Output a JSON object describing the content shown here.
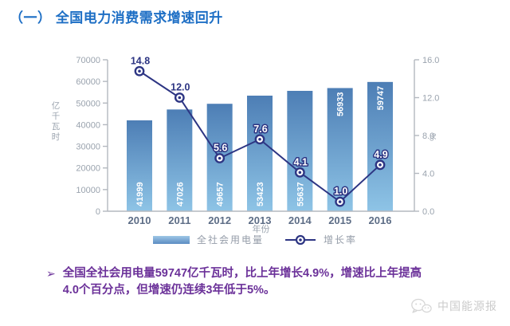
{
  "title": "（一） 全国电力消费需求增速回升",
  "chart_data": {
    "type": "bar+line",
    "categories": [
      "2010",
      "2011",
      "2012",
      "2013",
      "2014",
      "2015",
      "2016"
    ],
    "series": [
      {
        "name": "全社会用电量",
        "type": "bar",
        "axis": "left",
        "values": [
          41999,
          47026,
          49657,
          53423,
          55637,
          56933,
          59747
        ]
      },
      {
        "name": "增长率",
        "type": "line",
        "axis": "right",
        "values": [
          14.8,
          12.0,
          5.6,
          7.6,
          4.1,
          1.0,
          4.9
        ]
      }
    ],
    "xlabel": "年份",
    "left_axis": {
      "label": "亿千瓦时",
      "min": 0,
      "max": 70000,
      "step": 10000
    },
    "right_axis": {
      "label": "%",
      "min": 0,
      "max": 16,
      "step": 4
    },
    "legend_position": "bottom",
    "grid": false,
    "colors": {
      "bar_top": "#4d7eb5",
      "bar_bottom": "#8ec4e6",
      "line": "#2d3583",
      "axis": "#b3b8bf",
      "tick_text": "#9aa3ae",
      "year_text": "#5d6d86",
      "bar_label": "#ffffff"
    }
  },
  "summary": {
    "bullet": "➢",
    "lines": [
      "全国全社会用电量59747亿千瓦时，比上年增长4.9%，增速比上年提高",
      "4.0个百分点，但增速仍连续3年低于5%。"
    ]
  },
  "watermark": {
    "label": "中国能源报"
  }
}
